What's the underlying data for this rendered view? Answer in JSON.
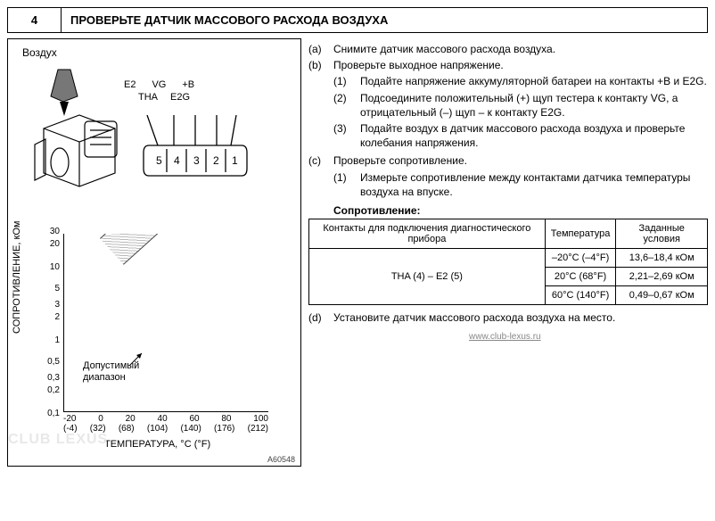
{
  "header": {
    "number": "4",
    "title": "ПРОВЕРЬТЕ ДАТЧИК МАССОВОГО РАСХОДА ВОЗДУХА"
  },
  "diagram": {
    "air_label": "Воздух",
    "pin_labels_top": [
      "E2",
      "VG",
      "+B"
    ],
    "pin_labels_bottom": [
      "THA",
      "E2G"
    ],
    "pin_numbers": [
      "5",
      "4",
      "3",
      "2",
      "1"
    ],
    "figure_id": "A60548"
  },
  "chart": {
    "y_label": "СОПРОТИВЛЕНИЕ, кОм",
    "y_ticks": [
      {
        "v": "30",
        "pos": 0
      },
      {
        "v": "20",
        "pos": 14
      },
      {
        "v": "10",
        "pos": 40
      },
      {
        "v": "5",
        "pos": 64
      },
      {
        "v": "3",
        "pos": 82
      },
      {
        "v": "2",
        "pos": 96
      },
      {
        "v": "1",
        "pos": 122
      },
      {
        "v": "0,5",
        "pos": 146
      },
      {
        "v": "0,3",
        "pos": 164
      },
      {
        "v": "0,2",
        "pos": 178
      },
      {
        "v": "0,1",
        "pos": 204
      }
    ],
    "x_ticks_c": [
      "-20",
      "0",
      "20",
      "40",
      "60",
      "80",
      "100"
    ],
    "x_ticks_f": [
      "(-4)",
      "(32)",
      "(68)",
      "(104)",
      "(140)",
      "(176)",
      "(212)"
    ],
    "x_label": "ТЕМПЕРАТУРА, °C (°F)",
    "range_label_1": "Допустимый",
    "range_label_2": "диапазон"
  },
  "steps": {
    "a": {
      "letter": "(a)",
      "text": "Снимите датчик массового расхода воздуха."
    },
    "b": {
      "letter": "(b)",
      "text": "Проверьте выходное напряжение.",
      "subs": [
        {
          "n": "(1)",
          "t": "Подайте напряжение аккумуляторной батареи на контакты +B и E2G."
        },
        {
          "n": "(2)",
          "t": "Подсоедините положительный (+) щуп тестера к контакту VG, а отрицательный (–) щуп – к контакту E2G."
        },
        {
          "n": "(3)",
          "t": "Подайте воздух в датчик массового расхода воздуха и проверьте колебания напряжения."
        }
      ]
    },
    "c": {
      "letter": "(c)",
      "text": "Проверьте сопротивление.",
      "subs": [
        {
          "n": "(1)",
          "t": "Измерьте сопротивление между контактами датчика температуры воздуха на впуске."
        }
      ]
    },
    "d": {
      "letter": "(d)",
      "text": "Установите датчик массового расхода воздуха на место."
    }
  },
  "table": {
    "title": "Сопротивление:",
    "head": [
      "Контакты для подключения диагностического прибора",
      "Температура",
      "Заданные условия"
    ],
    "pin_pair": "THA (4) – E2 (5)",
    "rows": [
      {
        "temp": "–20°C (–4°F)",
        "res": "13,6–18,4 кОм"
      },
      {
        "temp": "20°C (68°F)",
        "res": "2,21–2,69 кОм"
      },
      {
        "temp": "60°C (140°F)",
        "res": "0,49–0,67 кОм"
      }
    ]
  },
  "footer": {
    "link": "www.club-lexus.ru",
    "watermark": "CLUB LEXUS"
  }
}
